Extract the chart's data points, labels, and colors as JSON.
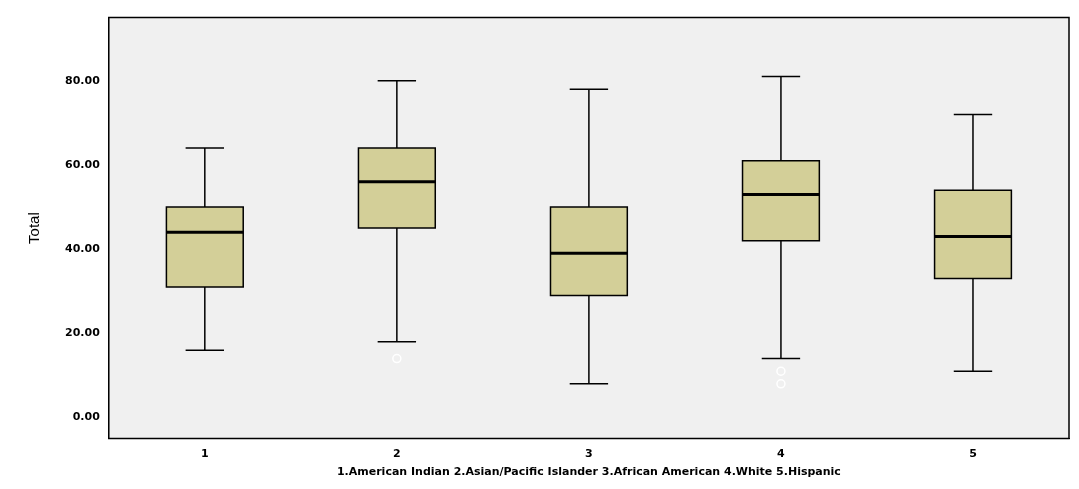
{
  "chart_data": {
    "type": "box",
    "xlabel": "1.American Indian 2.Asian/Pacific Islander 3.African American 4.White 5.Hispanic",
    "ylabel": "Total",
    "categories": [
      "1",
      "2",
      "3",
      "4",
      "5"
    ],
    "color": "#d3cf98",
    "boxes": [
      {
        "low": 16,
        "q1": 31,
        "median": 44,
        "q3": 50,
        "high": 64
      },
      {
        "low": 18,
        "q1": 45,
        "median": 56,
        "q3": 64,
        "high": 80,
        "outliers": [
          14
        ]
      },
      {
        "low": 8,
        "q1": 29,
        "median": 39,
        "q3": 50,
        "high": 78
      },
      {
        "low": 14,
        "q1": 42,
        "median": 53,
        "q3": 61,
        "high": 81,
        "outliers": [
          11,
          8
        ]
      },
      {
        "low": 11,
        "q1": 33,
        "median": 43,
        "q3": 54,
        "high": 72
      }
    ],
    "ylim": [
      -5,
      95
    ],
    "yticks": [
      {
        "value": 0,
        "label": "0.00"
      },
      {
        "value": 20,
        "label": "20.00"
      },
      {
        "value": 40,
        "label": "40.00"
      },
      {
        "value": 60,
        "label": "60.00"
      },
      {
        "value": 80,
        "label": "80.00"
      }
    ],
    "grid": false,
    "legend": false
  }
}
